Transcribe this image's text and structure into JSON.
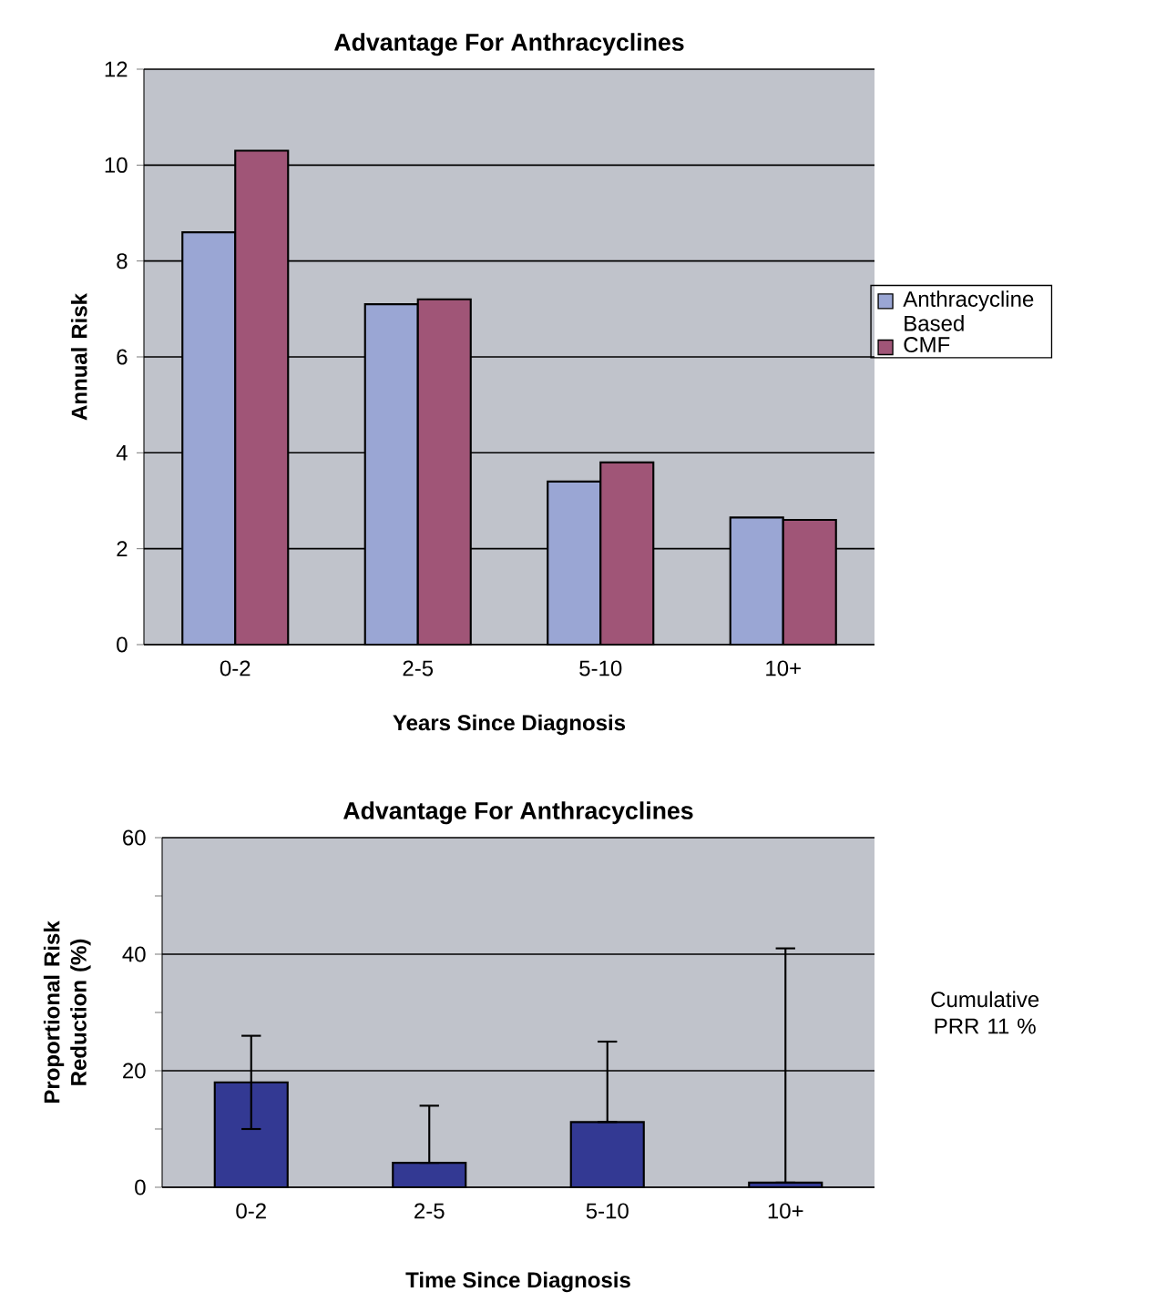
{
  "chart_data": [
    {
      "type": "bar",
      "title": "Advantage For Anthracyclines",
      "xlabel": "Years Since Diagnosis",
      "ylabel": "Annual Risk",
      "categories": [
        "0-2",
        "2-5",
        "5-10",
        "10+"
      ],
      "series": [
        {
          "name": "Anthracycline Based",
          "color": "#9aa6d4",
          "values": [
            8.6,
            7.1,
            3.4,
            2.65
          ]
        },
        {
          "name": "CMF",
          "color": "#a05577",
          "values": [
            10.3,
            7.2,
            3.8,
            2.6
          ]
        }
      ],
      "ylim": [
        0,
        12
      ],
      "yticks": [
        0,
        2,
        4,
        6,
        8,
        10,
        12
      ],
      "grid": "y",
      "legend": "right"
    },
    {
      "type": "bar",
      "title": "Advantage For Anthracyclines",
      "xlabel": "Time Since Diagnosis",
      "ylabel": "Proportional Risk Reduction (%)",
      "categories": [
        "0-2",
        "2-5",
        "5-10",
        "10+"
      ],
      "values": [
        18,
        4.2,
        11.2,
        0.8
      ],
      "color": "#333993",
      "errors": [
        [
          10,
          26
        ],
        [
          4.2,
          14
        ],
        [
          11.2,
          25
        ],
        [
          0.8,
          41
        ]
      ],
      "ylim": [
        0,
        60
      ],
      "yticks": [
        0,
        {
          "value": 10,
          "label": null
        },
        20,
        {
          "value": 30,
          "label": null
        },
        40,
        {
          "value": 50,
          "label": null
        },
        60
      ],
      "grid": "y",
      "annotations": [
        "Cumulative PRR 11 %"
      ]
    }
  ]
}
